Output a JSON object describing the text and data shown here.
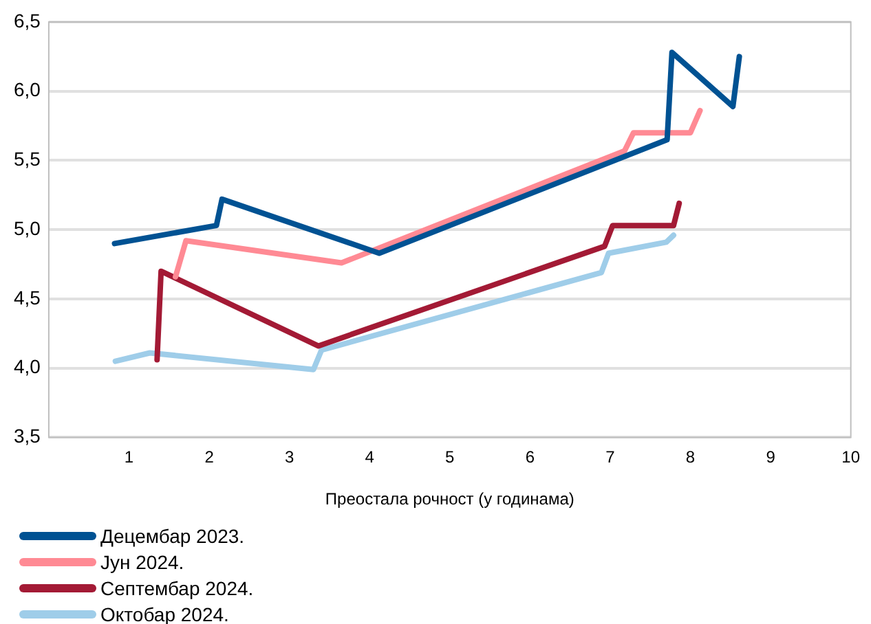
{
  "chart_data": {
    "type": "line",
    "xlabel": "Преостала рочност (у годинама)",
    "xlim": [
      0,
      10
    ],
    "xticks": [
      1,
      2,
      3,
      4,
      5,
      6,
      7,
      8,
      9,
      10
    ],
    "ylim": [
      3.5,
      6.5
    ],
    "yticks": [
      {
        "value": 3.5,
        "label": "3,5"
      },
      {
        "value": 4,
        "label": "4,0"
      },
      {
        "value": 4.5,
        "label": "4,5"
      },
      {
        "value": 5,
        "label": "5,0"
      },
      {
        "value": 5.5,
        "label": "5,5"
      },
      {
        "value": 6,
        "label": "6,0"
      },
      {
        "value": 6.5,
        "label": "6,5"
      }
    ],
    "grid": "y",
    "legend": "bottom",
    "marker": "none",
    "line_style": "solid",
    "series": [
      {
        "name": "Децембар 2023.",
        "color": "#005293",
        "x": [
          0.82,
          2.09,
          2.16,
          4.12,
          7.71,
          7.77,
          8.53,
          8.61
        ],
        "values": [
          4.9,
          5.03,
          5.22,
          4.83,
          5.65,
          6.28,
          5.89,
          6.25
        ]
      },
      {
        "name": "Јун 2024.",
        "color": "#ff8a94",
        "x": [
          1.58,
          1.71,
          3.65,
          7.18,
          7.29,
          8.0,
          8.12
        ],
        "values": [
          4.66,
          4.92,
          4.76,
          5.57,
          5.7,
          5.7,
          5.86
        ]
      },
      {
        "name": "Септембар 2024.",
        "color": "#a31a35",
        "x": [
          1.35,
          1.4,
          3.36,
          6.93,
          7.03,
          7.79,
          7.86
        ],
        "values": [
          4.06,
          4.7,
          4.16,
          4.88,
          5.03,
          5.03,
          5.19
        ]
      },
      {
        "name": "Октобар 2024.",
        "color": "#9fcde9",
        "x": [
          0.83,
          1.26,
          3.3,
          3.4,
          6.89,
          6.98,
          7.7,
          7.79
        ],
        "values": [
          4.05,
          4.11,
          3.99,
          4.13,
          4.69,
          4.83,
          4.91,
          4.96
        ]
      }
    ]
  }
}
